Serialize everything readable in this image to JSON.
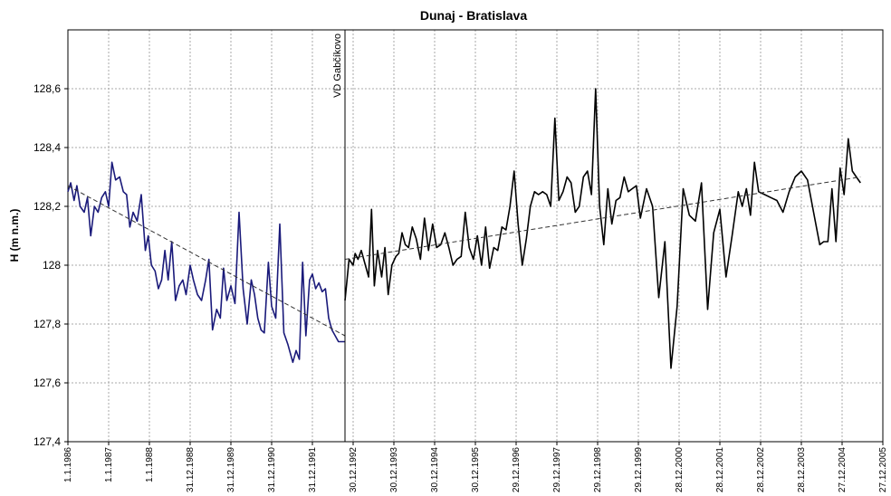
{
  "chart_data": {
    "type": "line",
    "title": "Dunaj - Bratislava",
    "xlabel": "",
    "ylabel": "H (m n.m.)",
    "ylim": [
      127.4,
      128.8
    ],
    "xlim": [
      1986.0,
      2006.0
    ],
    "ytick_values": [
      127.4,
      127.6,
      127.8,
      128.0,
      128.2,
      128.4,
      128.6
    ],
    "ytick_labels": [
      "127,4",
      "127,6",
      "127,8",
      "128",
      "128,2",
      "128,4",
      "128,6"
    ],
    "xtick_labels": [
      "1.1.1986",
      "1.1.1987",
      "1.1.1988",
      "31.12.1988",
      "31.12.1989",
      "31.12.1990",
      "31.12.1991",
      "30.12.1992",
      "30.12.1993",
      "30.12.1994",
      "30.12.1995",
      "29.12.1996",
      "29.12.1997",
      "29.12.1998",
      "29.12.1999",
      "28.12.2000",
      "28.12.2001",
      "28.12.2002",
      "28.12.2003",
      "27.12.2004",
      "27.12.2005"
    ],
    "grid": true,
    "colors": {
      "before": "#1a1a7a",
      "after": "#000000",
      "trend": "#333333",
      "grid": "#a8a8a8"
    },
    "event": {
      "label": "VD Gabčíkovo",
      "x": 1992.8
    },
    "series": [
      {
        "x": [
          1986.0,
          1986.07,
          1986.15,
          1986.22,
          1986.3,
          1986.4,
          1986.48,
          1986.56,
          1986.65,
          1986.74,
          1986.83,
          1986.92,
          1987.0,
          1987.08,
          1987.17,
          1987.27,
          1987.36,
          1987.44,
          1987.52,
          1987.6,
          1987.7,
          1987.8,
          1987.9,
          1987.97,
          1988.05,
          1988.14,
          1988.22,
          1988.3,
          1988.38,
          1988.46,
          1988.55,
          1988.64,
          1988.73,
          1988.82,
          1988.9,
          1989.0,
          1989.08,
          1989.18,
          1989.28,
          1989.38,
          1989.46,
          1989.55,
          1989.65,
          1989.74,
          1989.82,
          1989.9,
          1990.0,
          1990.1,
          1990.2,
          1990.3,
          1990.4,
          1990.5,
          1990.58,
          1990.66,
          1990.74,
          1990.82,
          1990.92,
          1991.0,
          1991.1,
          1991.2,
          1991.3,
          1991.4,
          1991.52,
          1991.6,
          1991.68,
          1991.76,
          1991.84,
          1991.93,
          1992.0,
          1992.08,
          1992.16,
          1992.24,
          1992.32,
          1992.4,
          1992.48,
          1992.56,
          1992.64,
          1992.72,
          1992.8
        ],
        "y": [
          128.25,
          128.28,
          128.22,
          128.27,
          128.2,
          128.18,
          128.23,
          128.1,
          128.2,
          128.18,
          128.23,
          128.25,
          128.2,
          128.35,
          128.29,
          128.3,
          128.25,
          128.24,
          128.13,
          128.18,
          128.15,
          128.24,
          128.05,
          128.1,
          128.0,
          127.98,
          127.92,
          127.95,
          128.05,
          127.95,
          128.08,
          127.88,
          127.93,
          127.95,
          127.9,
          128.0,
          127.95,
          127.9,
          127.88,
          127.95,
          128.02,
          127.78,
          127.85,
          127.82,
          127.99,
          127.88,
          127.93,
          127.87,
          128.18,
          127.92,
          127.8,
          127.95,
          127.9,
          127.82,
          127.78,
          127.77,
          128.01,
          127.86,
          127.82,
          128.14,
          127.77,
          127.73,
          127.67,
          127.71,
          127.68,
          128.01,
          127.76,
          127.95,
          127.97,
          127.92,
          127.94,
          127.91,
          127.92,
          127.82,
          127.78,
          127.76,
          127.74,
          127.74,
          127.74
        ]
      },
      {
        "x": [
          1992.8,
          1992.9,
          1993.0,
          1993.05,
          1993.12,
          1993.2,
          1993.3,
          1993.38,
          1993.45,
          1993.52,
          1993.6,
          1993.7,
          1993.78,
          1993.86,
          1993.95,
          1994.05,
          1994.12,
          1994.2,
          1994.28,
          1994.36,
          1994.45,
          1994.55,
          1994.65,
          1994.75,
          1994.85,
          1994.95,
          1995.05,
          1995.15,
          1995.25,
          1995.35,
          1995.45,
          1995.55,
          1995.65,
          1995.75,
          1995.85,
          1995.95,
          1996.05,
          1996.15,
          1996.25,
          1996.35,
          1996.45,
          1996.55,
          1996.65,
          1996.75,
          1996.85,
          1996.95,
          1997.05,
          1997.15,
          1997.25,
          1997.35,
          1997.45,
          1997.55,
          1997.65,
          1997.75,
          1997.85,
          1997.95,
          1998.05,
          1998.15,
          1998.25,
          1998.35,
          1998.45,
          1998.55,
          1998.65,
          1998.75,
          1998.85,
          1998.95,
          1999.05,
          1999.15,
          1999.25,
          1999.35,
          1999.45,
          1999.55,
          1999.65,
          1999.75,
          1999.85,
          1999.95,
          2000.05,
          2000.2,
          2000.35,
          2000.5,
          2000.65,
          2000.8,
          2000.95,
          2001.1,
          2001.25,
          2001.4,
          2001.55,
          2001.7,
          2001.85,
          2002.0,
          2002.15,
          2002.3,
          2002.45,
          2002.55,
          2002.65,
          2002.75,
          2002.85,
          2002.95,
          2003.1,
          2003.25,
          2003.4,
          2003.55,
          2003.7,
          2003.85,
          2004.0,
          2004.15,
          2004.3,
          2004.45,
          2004.55,
          2004.65,
          2004.75,
          2004.85,
          2004.95,
          2005.05,
          2005.15,
          2005.25,
          2005.35,
          2005.45
        ],
        "y": [
          127.88,
          128.02,
          128.0,
          128.04,
          128.02,
          128.05,
          128.0,
          127.96,
          128.19,
          127.93,
          128.05,
          127.96,
          128.06,
          127.9,
          128.0,
          128.03,
          128.04,
          128.11,
          128.07,
          128.06,
          128.13,
          128.09,
          128.02,
          128.16,
          128.05,
          128.14,
          128.06,
          128.07,
          128.11,
          128.06,
          128.0,
          128.02,
          128.03,
          128.18,
          128.06,
          128.02,
          128.1,
          128.0,
          128.13,
          127.99,
          128.06,
          128.05,
          128.13,
          128.12,
          128.2,
          128.32,
          128.14,
          128.0,
          128.09,
          128.2,
          128.25,
          128.24,
          128.25,
          128.24,
          128.2,
          128.5,
          128.22,
          128.25,
          128.3,
          128.28,
          128.18,
          128.2,
          128.3,
          128.32,
          128.24,
          128.6,
          128.2,
          128.07,
          128.26,
          128.14,
          128.22,
          128.23,
          128.3,
          128.25,
          128.26,
          128.27,
          128.16,
          128.26,
          128.2,
          127.89,
          128.08,
          127.65,
          127.86,
          128.26,
          128.17,
          128.15,
          128.28,
          127.85,
          128.11,
          128.19,
          127.96,
          128.1,
          128.25,
          128.2,
          128.26,
          128.17,
          128.35,
          128.25,
          128.24,
          128.23,
          128.22,
          128.18,
          128.25,
          128.3,
          128.32,
          128.29,
          128.18,
          128.07,
          128.08,
          128.08,
          128.26,
          128.08,
          128.33,
          128.24,
          128.43,
          128.32,
          128.3,
          128.28
        ]
      }
    ],
    "trend_lines": [
      {
        "x": [
          1986.0,
          1992.8
        ],
        "y": [
          128.27,
          127.76
        ]
      },
      {
        "x": [
          1992.8,
          2005.45
        ],
        "y": [
          128.02,
          128.3
        ]
      }
    ]
  }
}
